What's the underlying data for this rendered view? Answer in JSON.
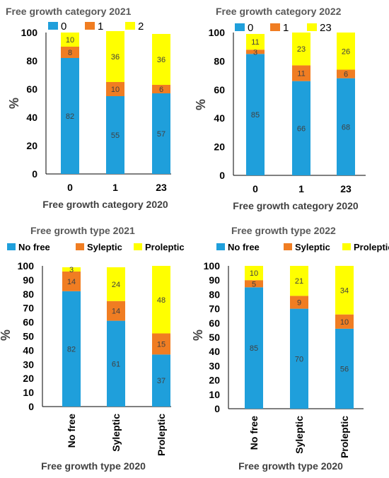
{
  "colors": {
    "no_free": "#1f9fdb",
    "syleptic": "#f07d22",
    "proleptic": "#ffff00"
  },
  "chart_data": [
    {
      "type": "bar",
      "stacked": true,
      "title": "Free growth category 2021",
      "xlabel": "Free growth category 2020",
      "ylabel": "%",
      "ylim": [
        0,
        100
      ],
      "yticks": [
        0,
        20,
        40,
        60,
        80,
        100
      ],
      "categories": [
        "0",
        "1",
        "23"
      ],
      "legend_position": "top",
      "series": [
        {
          "name": "0",
          "color": "#1f9fdb",
          "values": [
            82,
            55,
            57
          ]
        },
        {
          "name": "1",
          "color": "#f07d22",
          "values": [
            8,
            10,
            6
          ]
        },
        {
          "name": "2",
          "color": "#ffff00",
          "values": [
            10,
            36,
            36
          ]
        }
      ]
    },
    {
      "type": "bar",
      "stacked": true,
      "title": "Free growth category 2022",
      "xlabel": "Free growth category 2020",
      "ylabel": "%",
      "ylim": [
        0,
        100
      ],
      "yticks": [
        0,
        20,
        40,
        60,
        80,
        100
      ],
      "categories": [
        "0",
        "1",
        "23"
      ],
      "legend_position": "top",
      "series": [
        {
          "name": "0",
          "color": "#1f9fdb",
          "values": [
            85,
            66,
            68
          ]
        },
        {
          "name": "1",
          "color": "#f07d22",
          "values": [
            3,
            11,
            6
          ]
        },
        {
          "name": "23",
          "color": "#ffff00",
          "values": [
            11,
            23,
            26
          ]
        }
      ]
    },
    {
      "type": "bar",
      "stacked": true,
      "title": "Free growth type 2021",
      "xlabel": "Free growth type 2020",
      "ylabel": "%",
      "ylim": [
        0,
        100
      ],
      "yticks": [
        0,
        10,
        20,
        30,
        40,
        50,
        60,
        70,
        80,
        90,
        100
      ],
      "categories": [
        "No free",
        "Syleptic",
        "Proleptic"
      ],
      "legend_position": "top",
      "series": [
        {
          "name": "No free",
          "color": "#1f9fdb",
          "values": [
            82,
            61,
            37
          ]
        },
        {
          "name": "Syleptic",
          "color": "#f07d22",
          "values": [
            14,
            14,
            15
          ]
        },
        {
          "name": "Proleptic",
          "color": "#ffff00",
          "values": [
            3,
            24,
            48
          ]
        }
      ]
    },
    {
      "type": "bar",
      "stacked": true,
      "title": "Free growth type 2022",
      "xlabel": "Free growth type 2020",
      "ylabel": "%",
      "ylim": [
        0,
        100
      ],
      "yticks": [
        0,
        10,
        20,
        30,
        40,
        50,
        60,
        70,
        80,
        90,
        100
      ],
      "categories": [
        "No free",
        "Syleptic",
        "Proleptic"
      ],
      "legend_position": "top",
      "series": [
        {
          "name": "No free",
          "color": "#1f9fdb",
          "values": [
            85,
            70,
            56
          ]
        },
        {
          "name": "Syleptic",
          "color": "#f07d22",
          "values": [
            5,
            9,
            10
          ]
        },
        {
          "name": "Proleptic",
          "color": "#ffff00",
          "values": [
            10,
            21,
            34
          ]
        }
      ]
    }
  ]
}
